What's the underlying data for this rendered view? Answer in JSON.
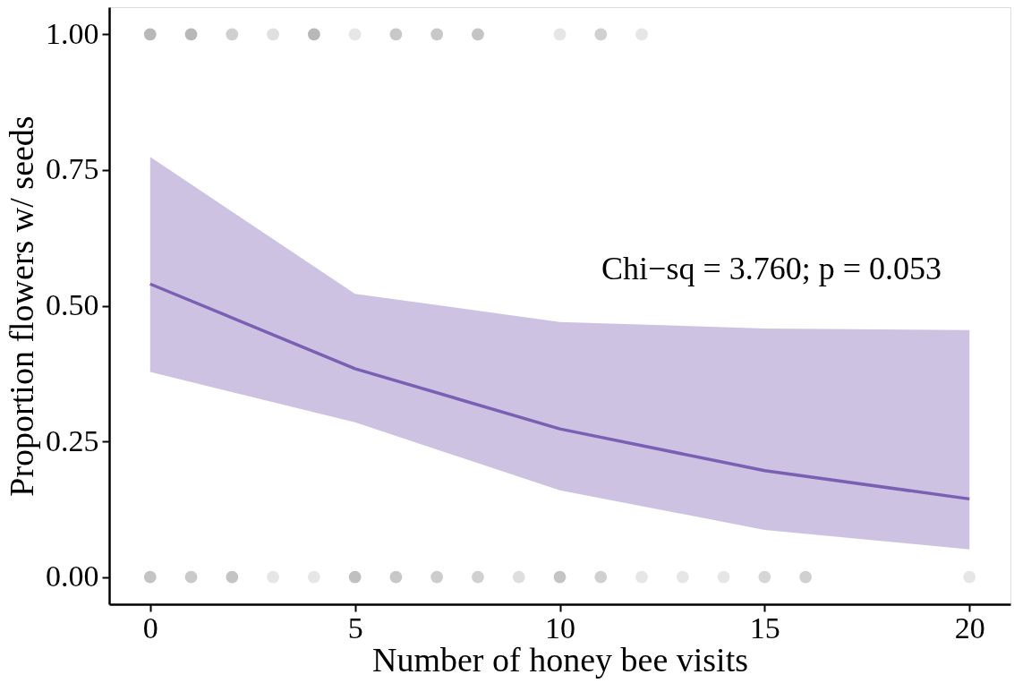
{
  "chart_data": {
    "type": "line",
    "xlabel": "Number of honey bee visits",
    "ylabel": "Proportion flowers w/ seeds",
    "xlim": [
      -1,
      21
    ],
    "ylim": [
      -0.05,
      1.05
    ],
    "xticks": [
      0,
      5,
      10,
      15,
      20
    ],
    "yticks": [
      {
        "value": 0,
        "label": "0.00"
      },
      {
        "value": 0.25,
        "label": "0.25"
      },
      {
        "value": 0.5,
        "label": "0.50"
      },
      {
        "value": 0.75,
        "label": "0.75"
      },
      {
        "value": 1,
        "label": "1.00"
      }
    ],
    "grid": false,
    "annotations": [
      "Chi−sq = 3.760; p = 0.053"
    ],
    "series": [
      {
        "type": "scatter",
        "marker": "circle",
        "x": [
          0,
          1,
          2,
          3,
          4,
          5,
          6,
          7,
          8,
          10,
          11,
          12,
          0,
          1,
          2,
          3,
          4,
          5,
          6,
          7,
          8,
          9,
          10,
          11,
          12,
          13,
          14,
          15,
          16,
          20
        ],
        "values": [
          1,
          1,
          1,
          1,
          1,
          1,
          1,
          1,
          1,
          1,
          1,
          1,
          0,
          0,
          0,
          0,
          0,
          0,
          0,
          0,
          0,
          0,
          0,
          0,
          0,
          0,
          0,
          0,
          0,
          0
        ],
        "colors": [
          "#b8b8b8",
          "#b8b8b8",
          "#d0d0d0",
          "#e0e0e0",
          "#b8b8b8",
          "#e6e6e6",
          "#c8c8c8",
          "#c8c8c8",
          "#c4c4c4",
          "#e6e6e6",
          "#d0d0d0",
          "#e6e6e6",
          "#c4c4c4",
          "#cacaca",
          "#c4c4c4",
          "#e6e6e6",
          "#e6e6e6",
          "#c0c0c0",
          "#c8c8c8",
          "#cccccc",
          "#d0d0d0",
          "#dedede",
          "#c4c4c4",
          "#d0d0d0",
          "#e6e6e6",
          "#e6e6e6",
          "#e6e6e6",
          "#d6d6d6",
          "#d0d0d0",
          "#e6e6e6"
        ]
      },
      {
        "color": "#7b5fb3",
        "line_style": "solid",
        "x": [
          0,
          5,
          10,
          15,
          20
        ],
        "values": [
          0.54,
          0.384,
          0.273,
          0.196,
          0.144
        ],
        "lower": [
          0.378,
          0.285,
          0.16,
          0.087,
          0.051
        ],
        "upper": [
          0.774,
          0.522,
          0.47,
          0.458,
          0.455
        ]
      }
    ]
  }
}
